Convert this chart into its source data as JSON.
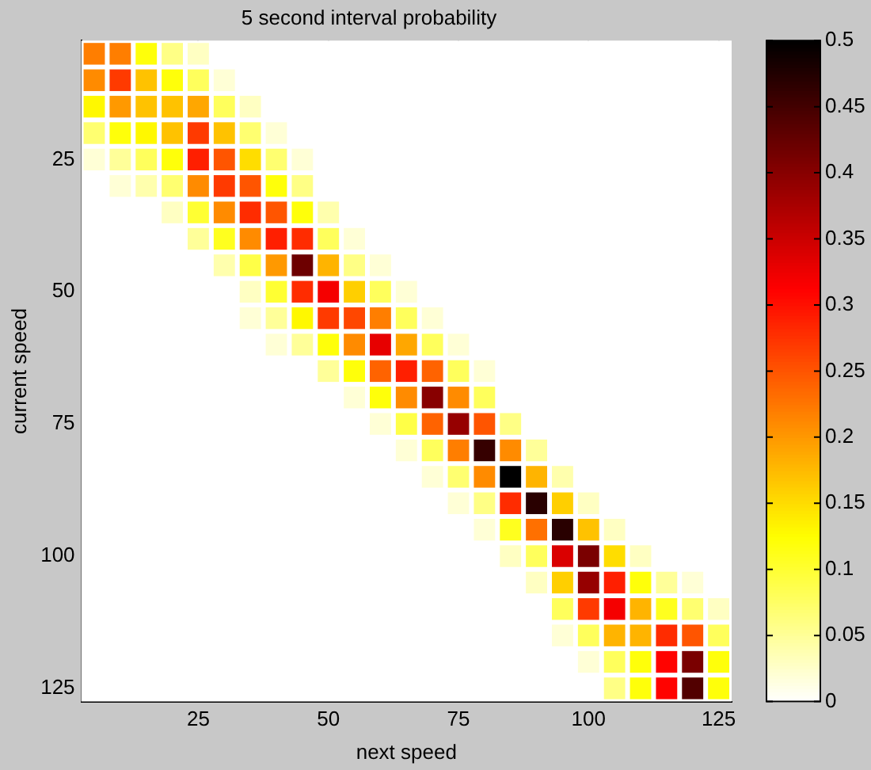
{
  "chart_data": {
    "type": "heatmap",
    "title": "5 second interval probability",
    "xlabel": "next speed",
    "ylabel": "current speed",
    "categories": [
      null,
      null,
      null,
      null,
      "25",
      null,
      null,
      null,
      null,
      "50",
      null,
      null,
      null,
      null,
      "75",
      null,
      null,
      null,
      null,
      "100",
      null,
      null,
      null,
      null,
      "125"
    ],
    "y_categories": [
      null,
      null,
      null,
      null,
      "25",
      null,
      null,
      null,
      null,
      "50",
      null,
      null,
      null,
      null,
      "75",
      null,
      null,
      null,
      null,
      "100",
      null,
      null,
      null,
      null,
      "125"
    ],
    "clim": [
      0,
      0.5
    ],
    "cticks": [
      0,
      0.05,
      0.1,
      0.15,
      0.2,
      0.25,
      0.3,
      0.35,
      0.4,
      0.45,
      0.5
    ],
    "grid": true,
    "cells": [
      [
        0.22,
        0.22,
        0.12,
        0.06,
        0.03,
        0,
        0,
        0,
        0,
        0,
        0,
        0,
        0,
        0,
        0,
        0,
        0,
        0,
        0,
        0,
        0,
        0,
        0,
        0,
        0
      ],
      [
        0.21,
        0.27,
        0.17,
        0.12,
        0.08,
        0.02,
        0,
        0,
        0,
        0,
        0,
        0,
        0,
        0,
        0,
        0,
        0,
        0,
        0,
        0,
        0,
        0,
        0,
        0,
        0
      ],
      [
        0.13,
        0.2,
        0.17,
        0.17,
        0.19,
        0.08,
        0.03,
        0,
        0,
        0,
        0,
        0,
        0,
        0,
        0,
        0,
        0,
        0,
        0,
        0,
        0,
        0,
        0,
        0,
        0
      ],
      [
        0.07,
        0.12,
        0.13,
        0.17,
        0.27,
        0.17,
        0.07,
        0.02,
        0,
        0,
        0,
        0,
        0,
        0,
        0,
        0,
        0,
        0,
        0,
        0,
        0,
        0,
        0,
        0,
        0
      ],
      [
        0.02,
        0.05,
        0.08,
        0.12,
        0.29,
        0.25,
        0.15,
        0.07,
        0.02,
        0,
        0,
        0,
        0,
        0,
        0,
        0,
        0,
        0,
        0,
        0,
        0,
        0,
        0,
        0,
        0
      ],
      [
        0,
        0.02,
        0.04,
        0.07,
        0.21,
        0.27,
        0.25,
        0.12,
        0.06,
        0,
        0,
        0,
        0,
        0,
        0,
        0,
        0,
        0,
        0,
        0,
        0,
        0,
        0,
        0,
        0
      ],
      [
        0,
        0,
        0,
        0.03,
        0.1,
        0.21,
        0.28,
        0.25,
        0.12,
        0.04,
        0,
        0,
        0,
        0,
        0,
        0,
        0,
        0,
        0,
        0,
        0,
        0,
        0,
        0,
        0
      ],
      [
        0,
        0,
        0,
        0,
        0.05,
        0.11,
        0.21,
        0.29,
        0.28,
        0.08,
        0.02,
        0,
        0,
        0,
        0,
        0,
        0,
        0,
        0,
        0,
        0,
        0,
        0,
        0,
        0
      ],
      [
        0,
        0,
        0,
        0,
        0,
        0.04,
        0.09,
        0.2,
        0.42,
        0.18,
        0.06,
        0.02,
        0,
        0,
        0,
        0,
        0,
        0,
        0,
        0,
        0,
        0,
        0,
        0,
        0
      ],
      [
        0,
        0,
        0,
        0,
        0,
        0,
        0.03,
        0.1,
        0.28,
        0.32,
        0.16,
        0.08,
        0.02,
        0,
        0,
        0,
        0,
        0,
        0,
        0,
        0,
        0,
        0,
        0,
        0
      ],
      [
        0,
        0,
        0,
        0,
        0,
        0,
        0.02,
        0.05,
        0.13,
        0.27,
        0.26,
        0.22,
        0.08,
        0.02,
        0,
        0,
        0,
        0,
        0,
        0,
        0,
        0,
        0,
        0,
        0
      ],
      [
        0,
        0,
        0,
        0,
        0,
        0,
        0,
        0.02,
        0.05,
        0.12,
        0.21,
        0.33,
        0.19,
        0.08,
        0.02,
        0,
        0,
        0,
        0,
        0,
        0,
        0,
        0,
        0,
        0
      ],
      [
        0,
        0,
        0,
        0,
        0,
        0,
        0,
        0,
        0,
        0.05,
        0.12,
        0.24,
        0.29,
        0.24,
        0.08,
        0.02,
        0,
        0,
        0,
        0,
        0,
        0,
        0,
        0,
        0
      ],
      [
        0,
        0,
        0,
        0,
        0,
        0,
        0,
        0,
        0,
        0,
        0.02,
        0.12,
        0.21,
        0.4,
        0.21,
        0.08,
        0,
        0,
        0,
        0,
        0,
        0,
        0,
        0,
        0
      ],
      [
        0,
        0,
        0,
        0,
        0,
        0,
        0,
        0,
        0,
        0,
        0,
        0.02,
        0.09,
        0.24,
        0.39,
        0.25,
        0.06,
        0,
        0,
        0,
        0,
        0,
        0,
        0,
        0
      ],
      [
        0,
        0,
        0,
        0,
        0,
        0,
        0,
        0,
        0,
        0,
        0,
        0,
        0.02,
        0.08,
        0.22,
        0.46,
        0.21,
        0.05,
        0,
        0,
        0,
        0,
        0,
        0,
        0
      ],
      [
        0,
        0,
        0,
        0,
        0,
        0,
        0,
        0,
        0,
        0,
        0,
        0,
        0,
        0.02,
        0.07,
        0.21,
        0.5,
        0.18,
        0.04,
        0,
        0,
        0,
        0,
        0,
        0
      ],
      [
        0,
        0,
        0,
        0,
        0,
        0,
        0,
        0,
        0,
        0,
        0,
        0,
        0,
        0,
        0.02,
        0.06,
        0.28,
        0.47,
        0.16,
        0.03,
        0,
        0,
        0,
        0,
        0
      ],
      [
        0,
        0,
        0,
        0,
        0,
        0,
        0,
        0,
        0,
        0,
        0,
        0,
        0,
        0,
        0,
        0.02,
        0.11,
        0.23,
        0.47,
        0.17,
        0.03,
        0,
        0,
        0,
        0
      ],
      [
        0,
        0,
        0,
        0,
        0,
        0,
        0,
        0,
        0,
        0,
        0,
        0,
        0,
        0,
        0,
        0,
        0.03,
        0.08,
        0.34,
        0.41,
        0.15,
        0.03,
        0,
        0,
        0
      ],
      [
        0,
        0,
        0,
        0,
        0,
        0,
        0,
        0,
        0,
        0,
        0,
        0,
        0,
        0,
        0,
        0,
        0,
        0.03,
        0.16,
        0.39,
        0.29,
        0.12,
        0.05,
        0.02,
        0
      ],
      [
        0,
        0,
        0,
        0,
        0,
        0,
        0,
        0,
        0,
        0,
        0,
        0,
        0,
        0,
        0,
        0,
        0,
        0,
        0.08,
        0.27,
        0.32,
        0.18,
        0.11,
        0.07,
        0.03
      ],
      [
        0,
        0,
        0,
        0,
        0,
        0,
        0,
        0,
        0,
        0,
        0,
        0,
        0,
        0,
        0,
        0,
        0,
        0,
        0.02,
        0.08,
        0.18,
        0.18,
        0.28,
        0.25,
        0.08
      ],
      [
        0,
        0,
        0,
        0,
        0,
        0,
        0,
        0,
        0,
        0,
        0,
        0,
        0,
        0,
        0,
        0,
        0,
        0,
        0,
        0.02,
        0.08,
        0.12,
        0.31,
        0.41,
        0.12
      ],
      [
        0,
        0,
        0,
        0,
        0,
        0,
        0,
        0,
        0,
        0,
        0,
        0,
        0,
        0,
        0,
        0,
        0,
        0,
        0,
        0,
        0.06,
        0.12,
        0.31,
        0.44,
        0.12
      ]
    ]
  }
}
